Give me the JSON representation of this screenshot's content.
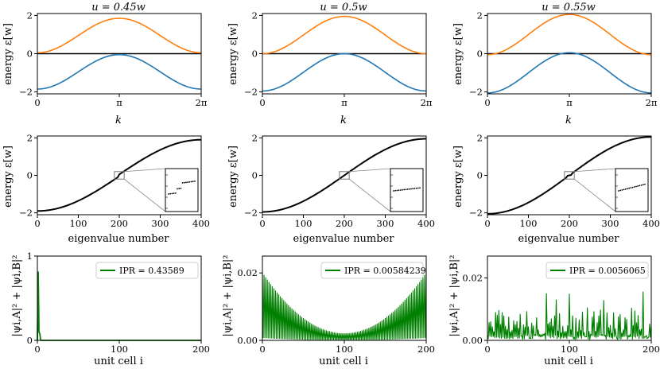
{
  "columns": [
    {
      "title": "u = 0.45w",
      "ipr": "IPR = 0.43589",
      "u": 0.45,
      "state": "localized"
    },
    {
      "title": "u = 0.5w",
      "ipr": "IPR = 0.00584239",
      "u": 0.5,
      "state": "edge"
    },
    {
      "title": "u = 0.55w",
      "ipr": "IPR = 0.0056065",
      "u": 0.55,
      "state": "random"
    }
  ],
  "colors": {
    "band_upper": "#ff7f0e",
    "band_lower": "#1f77b4",
    "spectrum": "#000000",
    "wavefunction": "#008000"
  },
  "chart_data": [
    {
      "type": "line",
      "row": "band structure",
      "xlabel": "k",
      "ylabel": "energy ε[w]",
      "xlim": [
        0,
        6.283
      ],
      "ylim": [
        -2.1,
        2.1
      ],
      "xticks": [
        "0",
        "π",
        "2π"
      ],
      "yticks": [
        "−2",
        "0",
        "2"
      ],
      "panels": [
        {
          "title": "u = 0.45w",
          "upper_band": {
            "min": 0.05,
            "max": 1.85
          },
          "lower_band": {
            "min": -1.85,
            "max": -0.05
          }
        },
        {
          "title": "u = 0.5w",
          "upper_band": {
            "min": 0.0,
            "max": 1.95
          },
          "lower_band": {
            "min": -1.95,
            "max": 0.0
          }
        },
        {
          "title": "u = 0.55w",
          "upper_band": {
            "min": -0.05,
            "max": 2.05
          },
          "lower_band": {
            "min": -2.05,
            "max": 0.05
          }
        }
      ]
    },
    {
      "type": "line",
      "row": "spectrum",
      "xlabel": "eigenvalue number",
      "ylabel": "energy ε[w]",
      "xlim": [
        0,
        400
      ],
      "ylim": [
        -2.1,
        2.1
      ],
      "xticks": [
        "0",
        "100",
        "200",
        "300",
        "400"
      ],
      "yticks": [
        "−2",
        "0",
        "2"
      ],
      "inset": "zoom near eigenvalue 200, energy 0",
      "panels": [
        {
          "u": 0.45,
          "min": -1.85,
          "max": 1.85,
          "gap": 0.1
        },
        {
          "u": 0.5,
          "min": -1.95,
          "max": 1.95,
          "gap": 0.0
        },
        {
          "u": 0.55,
          "min": -2.05,
          "max": 2.05,
          "plateau": 0.1
        }
      ]
    },
    {
      "type": "line",
      "row": "wavefunction",
      "xlabel": "unit cell i",
      "ylabel": "|ψi,A|² + |ψi,B|²",
      "xlim": [
        0,
        200
      ],
      "panels": [
        {
          "legend": "IPR = 0.43589",
          "ylim": [
            0,
            1
          ],
          "yticks": [
            "0",
            "1"
          ],
          "peak": 0.81
        },
        {
          "legend": "IPR = 0.00584239",
          "ylim": [
            0,
            0.025
          ],
          "yticks": [
            "0.00",
            "0.02"
          ],
          "edge_max": 0.02,
          "center_min": 0.002
        },
        {
          "legend": "IPR = 0.0056065",
          "ylim": [
            0,
            0.027
          ],
          "yticks": [
            "0.00",
            "0.02"
          ],
          "typical_max": 0.017
        }
      ],
      "xticks": [
        "0",
        "100",
        "200"
      ]
    }
  ]
}
